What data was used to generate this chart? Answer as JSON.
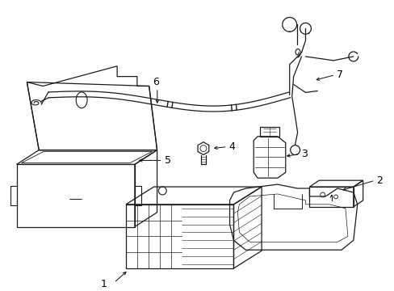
{
  "background_color": "#ffffff",
  "line_color": "#1a1a1a",
  "label_color": "#000000",
  "figsize": [
    4.89,
    3.6
  ],
  "dpi": 100,
  "lw": 0.9
}
